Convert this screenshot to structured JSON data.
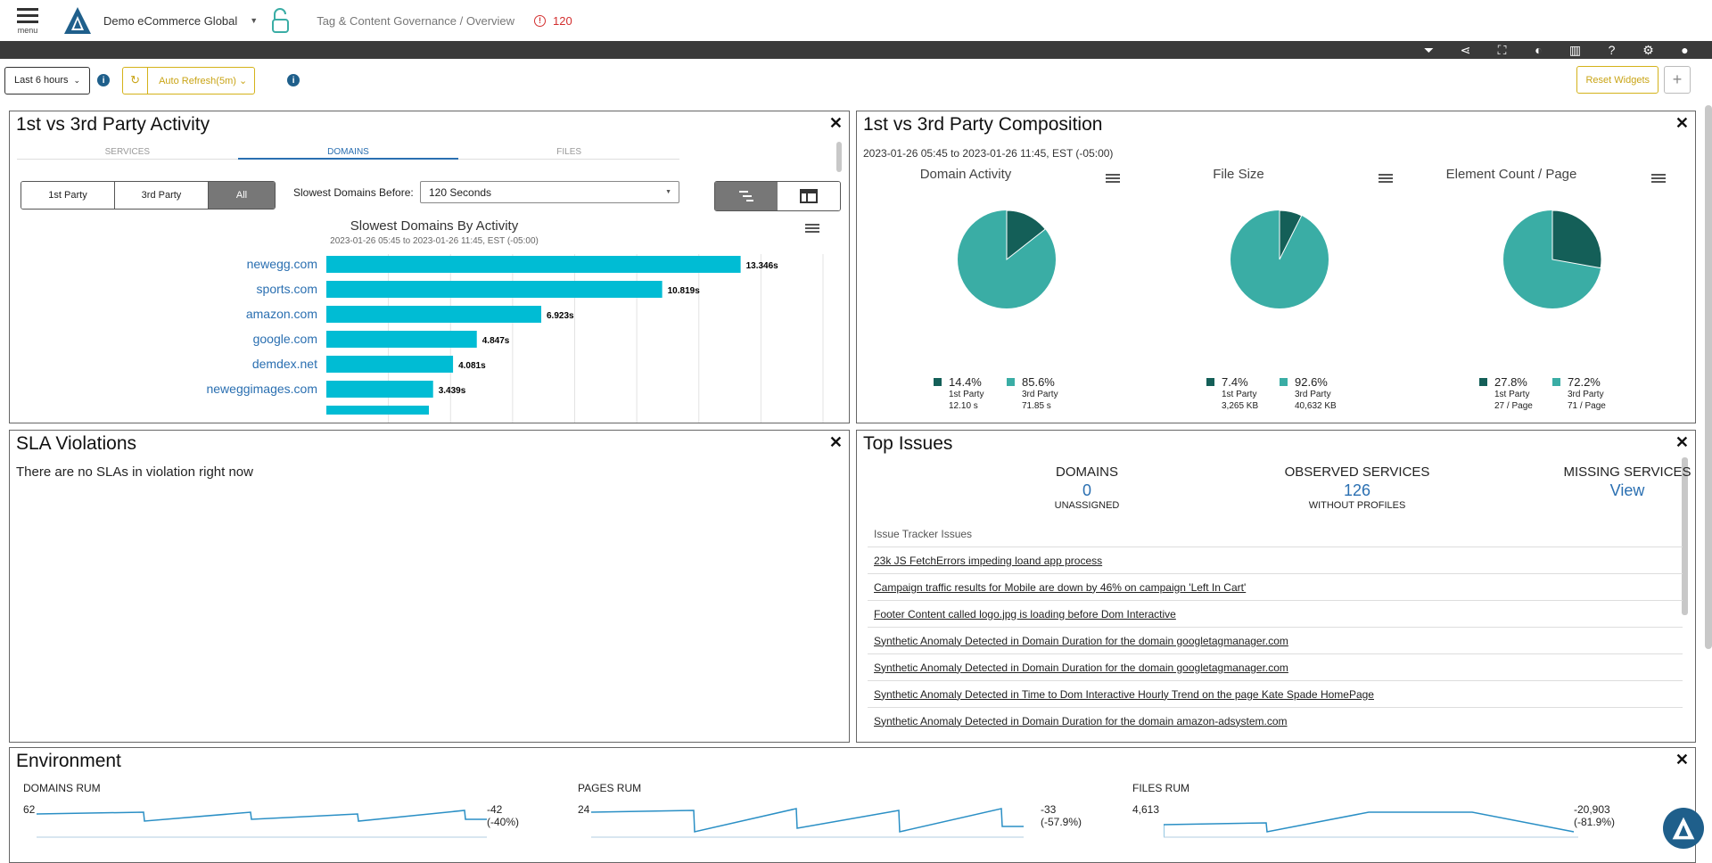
{
  "header": {
    "menu_label": "menu",
    "account": "Demo eCommerce Global",
    "breadcrumb": "Tag & Content Governance / Overview",
    "alert_count": "120"
  },
  "toolbar": {
    "icons": [
      "filter-icon",
      "share-icon",
      "fullscreen-icon",
      "contrast-icon",
      "report-icon",
      "help-icon",
      "settings-icon",
      "user-icon"
    ]
  },
  "controls": {
    "range": "Last 6 hours",
    "auto_refresh": "Auto Refresh(5m)",
    "reset": "Reset Widgets",
    "add": "+"
  },
  "activity": {
    "title": "1st vs 3rd Party Activity",
    "tabs": [
      "SERVICES",
      "DOMAINS",
      "FILES"
    ],
    "active_tab": "DOMAINS",
    "party_filter": [
      "1st Party",
      "3rd Party",
      "All"
    ],
    "active_party": "All",
    "slowest_label": "Slowest Domains Before:",
    "slowest_value": "120 Seconds",
    "chart_title": "Slowest Domains By Activity",
    "chart_subtitle": "2023-01-26 05:45 to 2023-01-26 11:45, EST (-05:00)"
  },
  "chart_data": {
    "type": "bar",
    "orientation": "horizontal",
    "title": "Slowest Domains By Activity",
    "subtitle": "2023-01-26 05:45 to 2023-01-26 11:45, EST (-05:00)",
    "categories": [
      "newegg.com",
      "sports.com",
      "amazon.com",
      "google.com",
      "demdex.net",
      "neweggimages.com"
    ],
    "values": [
      13.346,
      10.819,
      6.923,
      4.847,
      4.081,
      3.439
    ],
    "value_labels": [
      "13.346s",
      "10.819s",
      "6.923s",
      "4.847s",
      "4.081s",
      "3.439s"
    ],
    "xlim": [
      0,
      16
    ],
    "grid": true,
    "color": "#00bcd4"
  },
  "composition": {
    "title": "1st vs 3rd Party Composition",
    "date": "2023-01-26 05:45 to 2023-01-26 11:45, EST (-05:00)",
    "colors": {
      "first": "#145f58",
      "third": "#3aada5"
    },
    "pies": [
      {
        "title": "Domain Activity",
        "first_pct": "14.4%",
        "third_pct": "85.6%",
        "first_frac": 0.144,
        "first_label": "1st Party",
        "third_label": "3rd Party",
        "first_val": "12.10 s",
        "third_val": "71.85 s"
      },
      {
        "title": "File Size",
        "first_pct": "7.4%",
        "third_pct": "92.6%",
        "first_frac": 0.074,
        "first_label": "1st Party",
        "third_label": "3rd Party",
        "first_val": "3,265 KB",
        "third_val": "40,632 KB"
      },
      {
        "title": "Element Count / Page",
        "first_pct": "27.8%",
        "third_pct": "72.2%",
        "first_frac": 0.278,
        "first_label": "1st Party",
        "third_label": "3rd Party",
        "first_val": "27 / Page",
        "third_val": "71 / Page"
      }
    ]
  },
  "sla": {
    "title": "SLA Violations",
    "message": "There are no SLAs in violation right now"
  },
  "top_issues": {
    "title": "Top Issues",
    "domains": {
      "heading": "DOMAINS",
      "value": "0",
      "sub": "UNASSIGNED"
    },
    "observed": {
      "heading": "OBSERVED SERVICES",
      "value": "126",
      "sub": "WITHOUT PROFILES"
    },
    "missing": {
      "heading": "MISSING SERVICES",
      "value": "View"
    },
    "tracker_heading": "Issue Tracker Issues",
    "issues": [
      "23k JS FetchErrors impeding loand app process",
      "Campaign traffic results for Mobile are down by 46% on campaign 'Left In Cart'",
      "Footer Content called logo.jpg is loading before Dom Interactive",
      "Synthetic Anomaly Detected in Domain Duration for the domain googletagmanager.com",
      "Synthetic Anomaly Detected in Domain Duration for the domain googletagmanager.com",
      "Synthetic Anomaly Detected in Time to Dom Interactive Hourly Trend on the page Kate Spade HomePage",
      "Synthetic Anomaly Detected in Domain Duration for the domain amazon-adsystem.com"
    ]
  },
  "environment": {
    "title": "Environment",
    "items": [
      {
        "label": "DOMAINS RUM",
        "start": "62",
        "end": "-42 (-40%)"
      },
      {
        "label": "PAGES RUM",
        "start": "24",
        "end": "-33 (-57.9%)"
      },
      {
        "label": "FILES RUM",
        "start": "4,613",
        "end": "-20,903 (-81.9%)"
      }
    ]
  },
  "close_glyph": "✕",
  "info_glyph": "i"
}
